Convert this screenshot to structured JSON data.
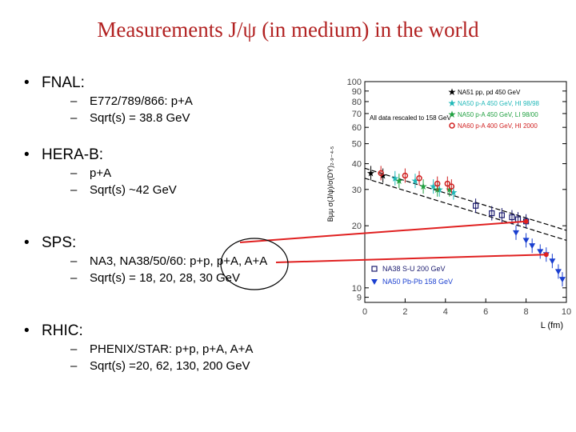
{
  "slide": {
    "title": "Measurements J/ψ (in medium) in the world",
    "sections": [
      {
        "bullet": "•",
        "heading": "FNAL:",
        "items": [
          "E772/789/866: p+A",
          "Sqrt(s) = 38.8 GeV"
        ]
      },
      {
        "bullet": "•",
        "heading": "HERA-B:",
        "items": [
          "p+A",
          "Sqrt(s) ~42 GeV"
        ]
      },
      {
        "bullet": "•",
        "heading": "SPS:",
        "items": [
          "NA3, NA38/50/60: p+p, p+A, A+A",
          "Sqrt(s) = 18, 20, 28, 30 GeV"
        ]
      },
      {
        "bullet": "•",
        "heading": "RHIC:",
        "items": [
          "PHENIX/STAR: p+p, p+A, A+A",
          "Sqrt(s) =20, 62, 130, 200 GeV"
        ]
      }
    ],
    "dash": "–"
  },
  "colors": {
    "title": "#b22222",
    "annotation_line": "#e02020",
    "na38": "#1a1a6e",
    "na50_pbpb": "#1a3fd0"
  },
  "chart_data": {
    "type": "scatter",
    "xlabel": "L (fm)",
    "ylabel": "Bμμ σ(J/ψ)/σ(DY)₂.₉₋₄.₅",
    "x_ticks": [
      "0",
      "2",
      "4",
      "6",
      "8",
      "10"
    ],
    "y_ticks": [
      "100",
      "90",
      "80",
      "70",
      "60",
      "50",
      "40",
      "30",
      "20",
      "10",
      "9"
    ],
    "xlim": [
      0,
      10
    ],
    "y_scale": "log",
    "ylim": [
      8.5,
      100
    ],
    "note": "All data rescaled to 158 GeV",
    "legend_top": [
      {
        "name": "NA51 pp, pd 450 GeV",
        "color": "#000000",
        "marker": "star"
      },
      {
        "name": "NA50 p-A 450 GeV, HI 98/98",
        "color": "#20b8b8",
        "marker": "star"
      },
      {
        "name": "NA50 p-A 450 GeV, LI 98/00",
        "color": "#20a040",
        "marker": "star"
      },
      {
        "name": "NA60 p-A 400 GeV, HI 2000",
        "color": "#d02020",
        "marker": "circle"
      }
    ],
    "legend_bottom": [
      {
        "name": "NA38 S-U 200 GeV",
        "color": "#1a1a6e",
        "marker": "open-square"
      },
      {
        "name": "NA50 Pb-Pb 158 GeV",
        "color": "#1a3fd0",
        "marker": "triangle-down"
      }
    ],
    "series": [
      {
        "name": "NA51 pp, pd 450 GeV",
        "marker": "star",
        "color": "#000000",
        "points": [
          [
            0.3,
            36
          ],
          [
            0.9,
            35
          ]
        ]
      },
      {
        "name": "NA50 p-A 450 GeV, HI 98/98",
        "marker": "star",
        "color": "#20b8b8",
        "points": [
          [
            1.5,
            34
          ],
          [
            2.5,
            33
          ],
          [
            3.4,
            31
          ],
          [
            3.7,
            30
          ],
          [
            4.4,
            29
          ]
        ]
      },
      {
        "name": "NA50 p-A 450 GeV, LI 98/00",
        "marker": "star",
        "color": "#20a040",
        "points": [
          [
            1.7,
            33
          ],
          [
            2.9,
            31
          ],
          [
            3.6,
            30
          ],
          [
            4.2,
            30
          ]
        ]
      },
      {
        "name": "NA60 p-A 400 GeV, HI 2000",
        "marker": "circle",
        "color": "#d02020",
        "points": [
          [
            0.8,
            36
          ],
          [
            2.0,
            35
          ],
          [
            2.7,
            34
          ],
          [
            3.6,
            32
          ],
          [
            4.1,
            32
          ],
          [
            4.3,
            31
          ]
        ]
      },
      {
        "name": "NA38 S-U 200 GeV",
        "marker": "open-square",
        "color": "#1a1a6e",
        "points": [
          [
            5.5,
            25
          ],
          [
            6.3,
            23
          ],
          [
            6.8,
            22.5
          ],
          [
            7.3,
            22
          ],
          [
            7.6,
            21.5
          ],
          [
            8.0,
            21
          ]
        ]
      },
      {
        "name": "NA50 Pb-Pb 158 GeV",
        "marker": "triangle-down",
        "color": "#1a3fd0",
        "points": [
          [
            7.5,
            18.5
          ],
          [
            8.0,
            17
          ],
          [
            8.3,
            16
          ],
          [
            8.7,
            15
          ],
          [
            9.0,
            14.5
          ],
          [
            9.3,
            13.5
          ],
          [
            9.6,
            12
          ],
          [
            9.8,
            11
          ]
        ]
      }
    ],
    "fit_bands": [
      {
        "label": "",
        "from": [
          0,
          38
        ],
        "to": [
          10,
          19
        ]
      },
      {
        "label": "",
        "from": [
          0,
          34
        ],
        "to": [
          10,
          17
        ]
      }
    ]
  }
}
